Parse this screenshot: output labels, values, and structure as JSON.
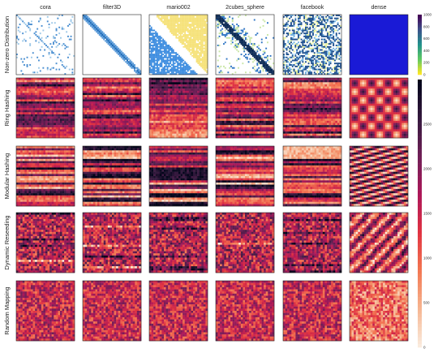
{
  "chart_data": {
    "type": "heatmap",
    "columns": [
      "cora",
      "filter3D",
      "mario002",
      "2cubes_sphere",
      "facebook",
      "dense"
    ],
    "rows": [
      "Non-zero Distribution",
      "Ring Hashing",
      "Modular Hashing",
      "Dynamic Reseeding",
      "Random Mapping"
    ],
    "colorbars": [
      {
        "applies_to": "Non-zero Distribution",
        "colormap": "viridis",
        "min": 0,
        "max": 1000,
        "ticks": [
          "1000",
          "800",
          "600",
          "400",
          "200",
          "0"
        ]
      },
      {
        "applies_to": "hashing rows",
        "colormap": "rocket",
        "min": 0,
        "max": 3000,
        "ticks": [
          "2500",
          "2000",
          "1500",
          "1000",
          "500",
          "0"
        ]
      }
    ],
    "panels": {
      "cora": {
        "Non-zero Distribution": "sparse scatter with diagonal",
        "Ring Hashing": "horizontal bands",
        "Modular Hashing": "horizontal bands",
        "Dynamic Reseeding": "noise with light streaks",
        "Random Mapping": "uniform noise"
      },
      "filter3D": {
        "Non-zero Distribution": "banded diagonal",
        "Ring Hashing": "horizontal bands",
        "Modular Hashing": "strong horizontal bands",
        "Dynamic Reseeding": "noise with dark streaks",
        "Random Mapping": "uniform noise"
      },
      "mario002": {
        "Non-zero Distribution": "yellow upper / blue lower split",
        "Ring Hashing": "dark top, light bottom bands",
        "Modular Hashing": "bands with dark middle",
        "Dynamic Reseeding": "noise with streaks",
        "Random Mapping": "uniform noise"
      },
      "2cubes_sphere": {
        "Non-zero Distribution": "block diagonal clusters",
        "Ring Hashing": "horizontal bands",
        "Modular Hashing": "horizontal bands",
        "Dynamic Reseeding": "noise with dark streaks",
        "Random Mapping": "uniform noise"
      },
      "facebook": {
        "Non-zero Distribution": "dense clustered blocks",
        "Ring Hashing": "horizontal bands",
        "Modular Hashing": "light top, dark bands",
        "Dynamic Reseeding": "noise with streaks",
        "Random Mapping": "uniform noise"
      },
      "dense": {
        "Non-zero Distribution": "uniform dense",
        "Ring Hashing": "checkerboard",
        "Modular Hashing": "diagonal stripes",
        "Dynamic Reseeding": "diagonal noise",
        "Random Mapping": "light uniform noise"
      }
    }
  }
}
